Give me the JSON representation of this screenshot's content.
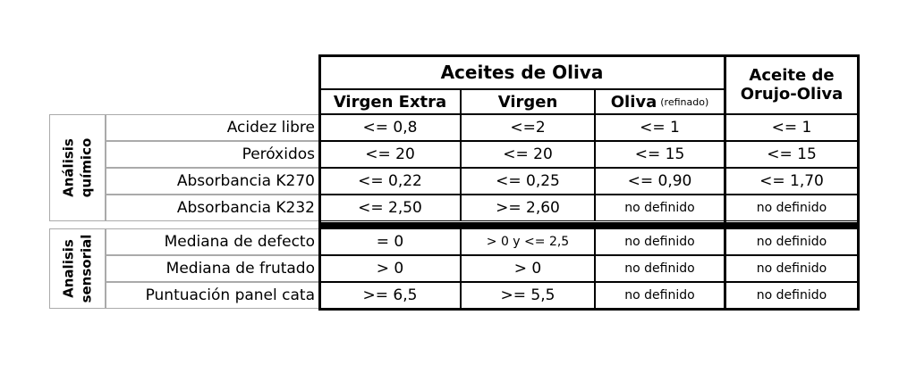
{
  "header": {
    "group": "Aceites de Oliva",
    "columns": [
      {
        "label": "Virgen Extra"
      },
      {
        "label": "Virgen"
      },
      {
        "label": "Oliva",
        "note": "(refinado)"
      }
    ],
    "orujo": [
      "Aceite de",
      "Orujo-Oliva"
    ]
  },
  "sections": [
    {
      "label": [
        "Análisis",
        "químico"
      ],
      "rows": [
        {
          "name": "Acidez libre",
          "values": [
            "<= 0,8",
            "<=2",
            "<= 1",
            "<= 1"
          ]
        },
        {
          "name": "Peróxidos",
          "values": [
            "<= 20",
            "<= 20",
            "<= 15",
            "<= 15"
          ]
        },
        {
          "name": "Absorbancia K270",
          "values": [
            "<= 0,22",
            "<= 0,25",
            "<= 0,90",
            "<= 1,70"
          ]
        },
        {
          "name": "Absorbancia K232",
          "values": [
            "<= 2,50",
            ">= 2,60",
            "no definido",
            "no definido"
          ]
        }
      ]
    },
    {
      "label": [
        "Analisis",
        "sensorial"
      ],
      "rows": [
        {
          "name": "Mediana de defecto",
          "values": [
            "= 0",
            "> 0 y <= 2,5",
            "no definido",
            "no definido"
          ]
        },
        {
          "name": "Mediana de frutado",
          "values": [
            "> 0",
            "> 0",
            "no definido",
            "no definido"
          ]
        },
        {
          "name": "Puntuación panel cata",
          "values": [
            ">= 6,5",
            ">= 5,5",
            "no definido",
            "no definido"
          ]
        }
      ]
    }
  ]
}
